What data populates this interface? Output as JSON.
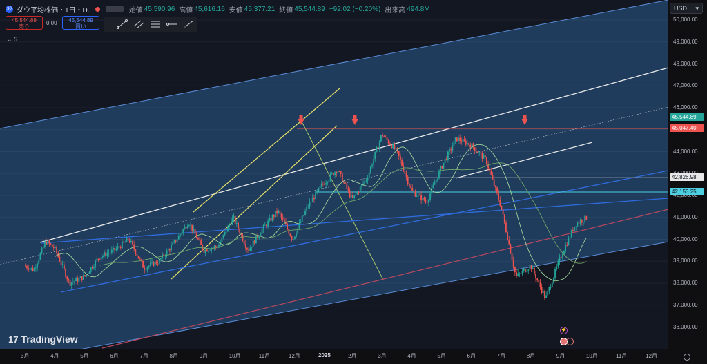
{
  "header": {
    "title": "ダウ平均株価・1日・DJ",
    "open_label": "始値",
    "open": "45,590.96",
    "high_label": "高値",
    "high": "45,616.16",
    "low_label": "安値",
    "low": "45,377.21",
    "close_label": "終値",
    "close": "45,544.89",
    "change": "−92.02 (−0.20%)",
    "volume_label": "出来高",
    "volume": "494.8M"
  },
  "trade": {
    "sell_price": "45,544.89",
    "sell_label": "売り",
    "spread": "0.00",
    "buy_price": "45,544.89",
    "buy_label": "買い"
  },
  "indicators_count": "5",
  "currency": "USD",
  "brand": "TradingView",
  "colors": {
    "background": "#0f0f12",
    "channel": "#2a4e78",
    "up": "#26a69a",
    "down": "#ef5350",
    "yellow": "#e8e06a",
    "blue": "#2f6bdb",
    "white": "#e8e8e8"
  },
  "chart_data": {
    "type": "candlestick",
    "title": "",
    "y_axis": {
      "min": 35500,
      "max": 50500,
      "step": 1000,
      "ticks": [
        "50,000.00",
        "49,000.00",
        "48,000.00",
        "47,000.00",
        "46,000.00",
        "45,000.00",
        "44,000.00",
        "43,000.00",
        "42,000.00",
        "41,000.00",
        "40,000.00",
        "39,000.00",
        "38,000.00",
        "37,000.00",
        "36,000.00"
      ]
    },
    "x_axis": {
      "ticks": [
        "3月",
        "4月",
        "5月",
        "6月",
        "7月",
        "8月",
        "9月",
        "10月",
        "11月",
        "12月",
        "2025",
        "2月",
        "3月",
        "4月",
        "5月",
        "6月",
        "7月",
        "8月",
        "9月",
        "10月",
        "11月",
        "12月"
      ]
    },
    "last_price": 45544.89,
    "price_labels": [
      {
        "text": "45,544.89",
        "value": 45544.89,
        "style": "last"
      },
      {
        "text": "45,047.40",
        "value": 45047.4,
        "style": "red"
      },
      {
        "text": "42,826.98",
        "value": 42826.98,
        "style": "white"
      },
      {
        "text": "42,153.25",
        "value": 42153.25,
        "style": "cyan"
      }
    ],
    "series": [
      {
        "name": "",
        "kind": "close",
        "x": [
          0,
          0.3,
          0.7,
          1,
          1.5,
          2,
          2.5,
          3,
          3.5,
          4,
          4.5,
          5,
          5.5,
          6,
          6.5,
          7,
          7.5,
          8,
          8.5,
          9,
          9.5,
          10,
          10.5,
          11,
          11.5,
          12,
          12.5,
          13,
          13.5,
          14,
          14.5,
          15,
          15.5,
          16,
          16.5,
          17,
          17.5,
          18,
          18.5,
          18.9
        ],
        "y": [
          38800,
          38600,
          39900,
          39600,
          38000,
          38300,
          39200,
          39500,
          40000,
          38700,
          39000,
          39800,
          40800,
          39500,
          39700,
          41000,
          39500,
          40500,
          41300,
          40000,
          41500,
          42500,
          43200,
          41800,
          42800,
          44800,
          44000,
          42200,
          41700,
          43300,
          44600,
          44300,
          43600,
          41500,
          38300,
          38800,
          37300,
          39200,
          40700,
          41000
        ]
      }
    ]
  }
}
